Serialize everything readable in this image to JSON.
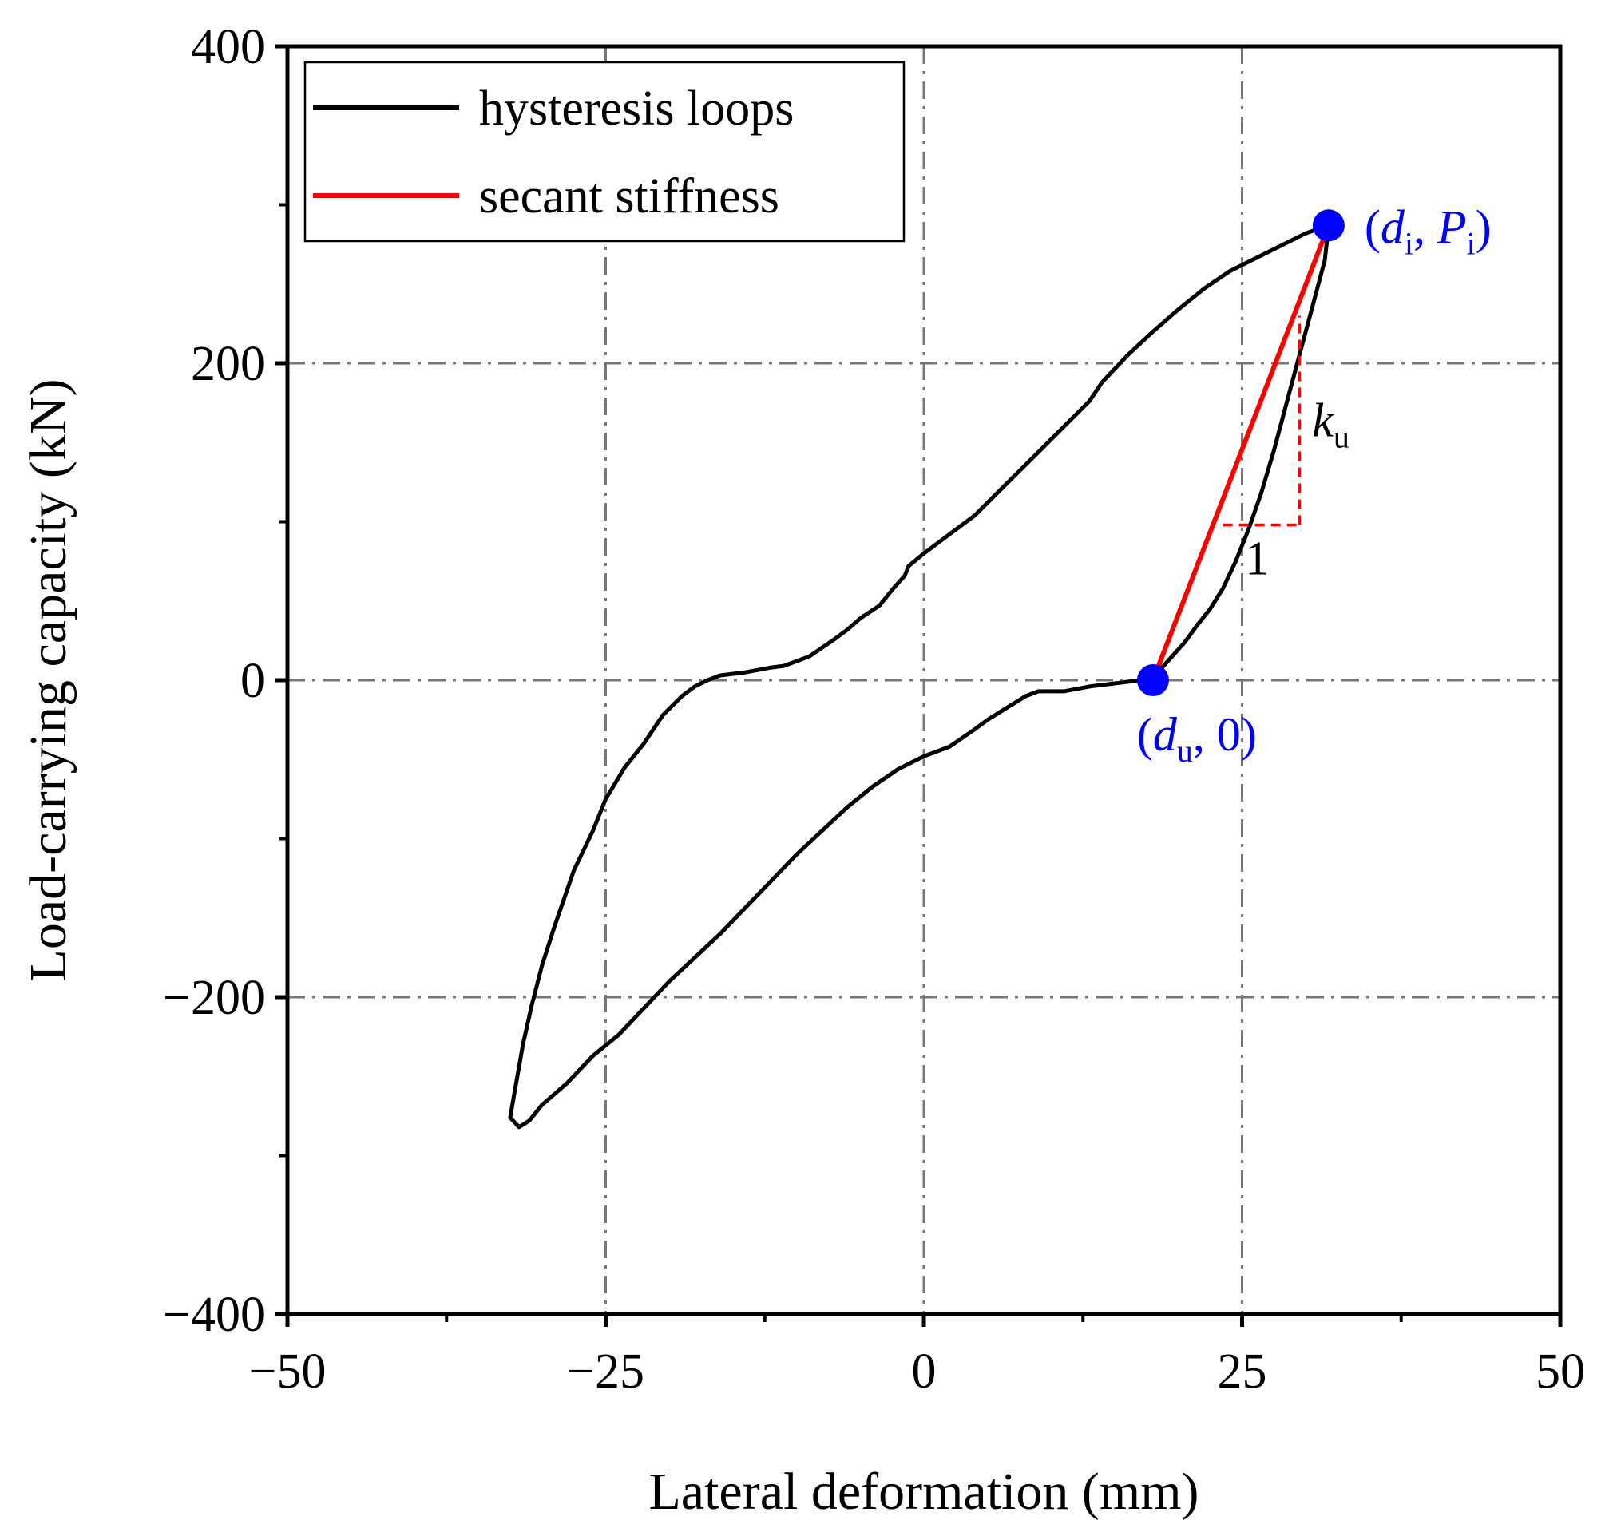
{
  "chart_data": {
    "type": "line",
    "xlabel": "Lateral deformation (mm)",
    "ylabel": "Load-carrying capacity (kN)",
    "xlim": [
      -50,
      50
    ],
    "ylim": [
      -400,
      400
    ],
    "xticks": [
      -50,
      -25,
      0,
      25,
      50
    ],
    "xtick_labels": [
      "−50",
      "−25",
      "0",
      "25",
      "50"
    ],
    "yticks": [
      -400,
      -200,
      0,
      200,
      400
    ],
    "ytick_labels": [
      "−400",
      "−200",
      "0",
      "200",
      "400"
    ],
    "x_minor_ticks": [
      -37.5,
      -12.5,
      12.5,
      37.5
    ],
    "y_minor_ticks": [
      -300,
      -100,
      100,
      300
    ],
    "grid": "dash-dot at major ticks",
    "legend": {
      "position": "top-left",
      "entries": [
        {
          "label": "hysteresis loops",
          "color": "#000000"
        },
        {
          "label": "secant stiffness",
          "color": "#ff0000"
        }
      ]
    },
    "series": [
      {
        "name": "hysteresis loops",
        "color": "#000000",
        "points": [
          [
            31.8,
            287
          ],
          [
            31.5,
            265
          ],
          [
            30.5,
            235
          ],
          [
            29.5,
            205
          ],
          [
            28.5,
            175
          ],
          [
            27.5,
            145
          ],
          [
            26.5,
            118
          ],
          [
            25.5,
            95
          ],
          [
            24.5,
            75
          ],
          [
            23.5,
            58
          ],
          [
            22.5,
            45
          ],
          [
            21.5,
            35
          ],
          [
            20.5,
            24
          ],
          [
            19.5,
            15
          ],
          [
            18.5,
            6
          ],
          [
            17.8,
            1
          ],
          [
            17.0,
            0
          ],
          [
            16.0,
            -1
          ],
          [
            15.0,
            -2
          ],
          [
            13.0,
            -4
          ],
          [
            11.0,
            -7
          ],
          [
            9.0,
            -7
          ],
          [
            8.0,
            -10
          ],
          [
            7.0,
            -15
          ],
          [
            5.0,
            -25
          ],
          [
            4.0,
            -31
          ],
          [
            2.0,
            -42
          ],
          [
            0.0,
            -48
          ],
          [
            -2.0,
            -56
          ],
          [
            -4.0,
            -67
          ],
          [
            -6.0,
            -80
          ],
          [
            -8.0,
            -95
          ],
          [
            -10.0,
            -110
          ],
          [
            -13.0,
            -135
          ],
          [
            -16.0,
            -160
          ],
          [
            -18.0,
            -175
          ],
          [
            -20.0,
            -190
          ],
          [
            -22.0,
            -207
          ],
          [
            -24.0,
            -224
          ],
          [
            -26.0,
            -237
          ],
          [
            -28.0,
            -254
          ],
          [
            -30.0,
            -268
          ],
          [
            -31.0,
            -278
          ],
          [
            -31.8,
            -282
          ],
          [
            -32.5,
            -276
          ],
          [
            -32.2,
            -262
          ],
          [
            -31.5,
            -230
          ],
          [
            -30.8,
            -205
          ],
          [
            -30.0,
            -180
          ],
          [
            -29.0,
            -155
          ],
          [
            -27.5,
            -120
          ],
          [
            -26.0,
            -95
          ],
          [
            -25.0,
            -75
          ],
          [
            -23.5,
            -55
          ],
          [
            -22.0,
            -40
          ],
          [
            -20.5,
            -22
          ],
          [
            -19.0,
            -10
          ],
          [
            -18.0,
            -4
          ],
          [
            -17.0,
            0
          ],
          [
            -16.0,
            3
          ],
          [
            -14.0,
            5
          ],
          [
            -12.0,
            8
          ],
          [
            -11.0,
            9
          ],
          [
            -9.0,
            15
          ],
          [
            -7.0,
            26
          ],
          [
            -6.0,
            32
          ],
          [
            -5.0,
            39
          ],
          [
            -3.5,
            47
          ],
          [
            -2.5,
            57
          ],
          [
            -1.5,
            66
          ],
          [
            -1.2,
            72
          ],
          [
            0.0,
            80
          ],
          [
            2.0,
            92
          ],
          [
            4.0,
            104
          ],
          [
            5.0,
            112
          ],
          [
            7.0,
            128
          ],
          [
            9.0,
            144
          ],
          [
            11.0,
            160
          ],
          [
            13.0,
            176
          ],
          [
            14.0,
            188
          ],
          [
            16.0,
            205
          ],
          [
            18.0,
            220
          ],
          [
            20.0,
            234
          ],
          [
            22.0,
            247
          ],
          [
            24.0,
            258
          ],
          [
            26.0,
            266
          ],
          [
            28.0,
            274
          ],
          [
            30.0,
            282
          ],
          [
            31.8,
            287
          ]
        ]
      },
      {
        "name": "secant stiffness",
        "color": "#ff0000",
        "points": [
          [
            18.0,
            0
          ],
          [
            31.8,
            287
          ]
        ]
      }
    ],
    "annotations": [
      {
        "name": "point-di-Pi",
        "x": 31.8,
        "y": 287,
        "color": "#0000ff",
        "text_parts": [
          "(",
          "d",
          "i",
          ", ",
          "P",
          "i",
          ")"
        ]
      },
      {
        "name": "point-du-0",
        "x": 18.0,
        "y": 0,
        "color": "#0000ff",
        "text_parts": [
          "(",
          "d",
          "u",
          ", 0)"
        ]
      },
      {
        "name": "slope-triangle",
        "color": "#ff0000",
        "run": [
          23.5,
          29.5
        ],
        "rise_base": 98,
        "rise_top": 230,
        "run_label": "1",
        "rise_label_main": "k",
        "rise_label_sub": "u"
      }
    ]
  }
}
